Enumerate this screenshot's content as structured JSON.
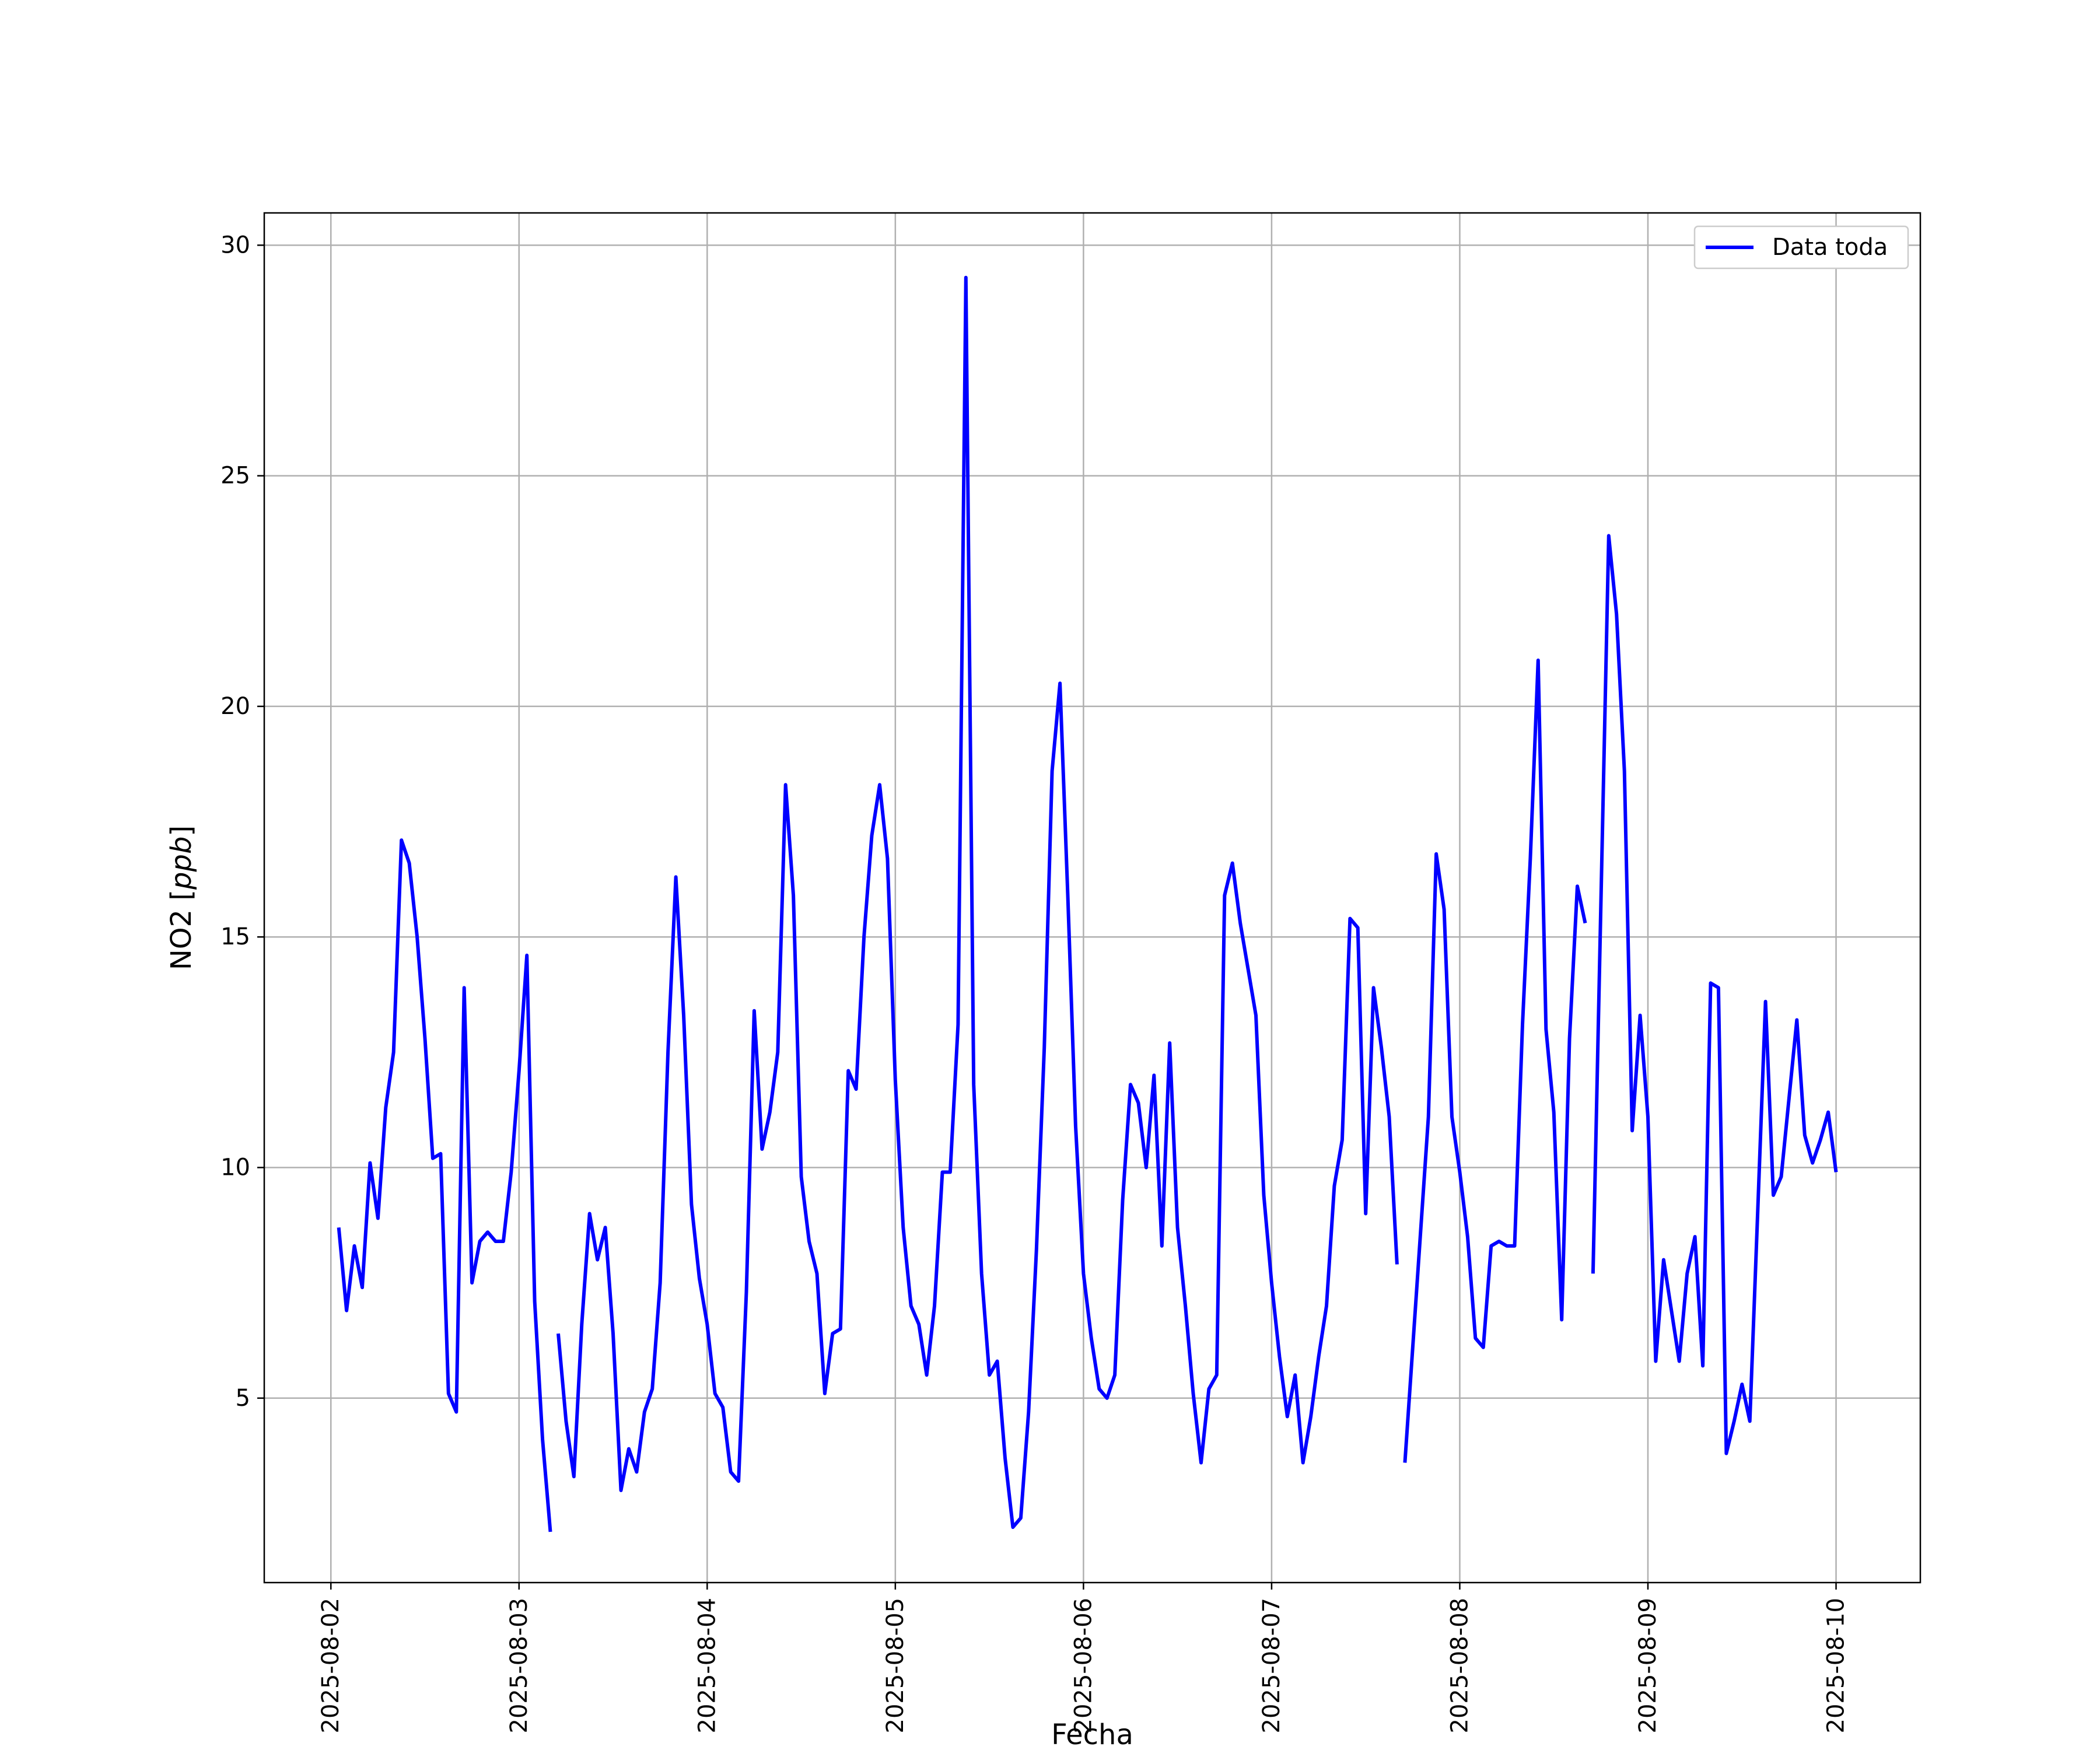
{
  "chart_data": {
    "type": "line",
    "title": "",
    "xlabel": "Fecha",
    "ylabel": "NO2 [ppb]",
    "ylim": [
      1.0,
      30.7
    ],
    "xlim": [
      "2025-08-01 15:30",
      "2025-08-10 10:45"
    ],
    "grid": true,
    "legend_position": "top-right",
    "x_ticks": [
      "2025-08-02",
      "2025-08-03",
      "2025-08-04",
      "2025-08-05",
      "2025-08-06",
      "2025-08-07",
      "2025-08-08",
      "2025-08-09",
      "2025-08-10"
    ],
    "y_ticks": [
      5,
      10,
      15,
      20,
      25,
      30
    ],
    "series": [
      {
        "name": "Data toda",
        "color": "#0000ff",
        "x": [
          "2025-08-02 01:00",
          "2025-08-02 02:00",
          "2025-08-02 03:00",
          "2025-08-02 04:00",
          "2025-08-02 05:00",
          "2025-08-02 06:00",
          "2025-08-02 07:00",
          "2025-08-02 08:00",
          "2025-08-02 09:00",
          "2025-08-02 10:00",
          "2025-08-02 11:00",
          "2025-08-02 12:00",
          "2025-08-02 13:00",
          "2025-08-02 14:00",
          "2025-08-02 15:00",
          "2025-08-02 16:00",
          "2025-08-02 17:00",
          "2025-08-02 18:00",
          "2025-08-02 19:00",
          "2025-08-02 20:00",
          "2025-08-02 21:00",
          "2025-08-02 22:00",
          "2025-08-02 23:00",
          "2025-08-03 00:00",
          "2025-08-03 01:00",
          "2025-08-03 02:00",
          "2025-08-03 03:00",
          "2025-08-03 04:00",
          "2025-08-03 05:00",
          "2025-08-03 06:00",
          "2025-08-03 07:00",
          "2025-08-03 08:00",
          "2025-08-03 09:00",
          "2025-08-03 10:00",
          "2025-08-03 11:00",
          "2025-08-03 12:00",
          "2025-08-03 13:00",
          "2025-08-03 14:00",
          "2025-08-03 15:00",
          "2025-08-03 16:00",
          "2025-08-03 17:00",
          "2025-08-03 18:00",
          "2025-08-03 19:00",
          "2025-08-03 20:00",
          "2025-08-03 21:00",
          "2025-08-03 22:00",
          "2025-08-03 23:00",
          "2025-08-04 00:00",
          "2025-08-04 01:00",
          "2025-08-04 02:00",
          "2025-08-04 03:00",
          "2025-08-04 04:00",
          "2025-08-04 05:00",
          "2025-08-04 06:00",
          "2025-08-04 07:00",
          "2025-08-04 08:00",
          "2025-08-04 09:00",
          "2025-08-04 10:00",
          "2025-08-04 11:00",
          "2025-08-04 12:00",
          "2025-08-04 13:00",
          "2025-08-04 14:00",
          "2025-08-04 15:00",
          "2025-08-04 16:00",
          "2025-08-04 17:00",
          "2025-08-04 18:00",
          "2025-08-04 19:00",
          "2025-08-04 20:00",
          "2025-08-04 21:00",
          "2025-08-04 22:00",
          "2025-08-04 23:00",
          "2025-08-05 00:00",
          "2025-08-05 01:00",
          "2025-08-05 02:00",
          "2025-08-05 03:00",
          "2025-08-05 04:00",
          "2025-08-05 05:00",
          "2025-08-05 06:00",
          "2025-08-05 07:00",
          "2025-08-05 08:00",
          "2025-08-05 09:00",
          "2025-08-05 10:00",
          "2025-08-05 11:00",
          "2025-08-05 12:00",
          "2025-08-05 13:00",
          "2025-08-05 14:00",
          "2025-08-05 15:00",
          "2025-08-05 16:00",
          "2025-08-05 17:00",
          "2025-08-05 18:00",
          "2025-08-05 19:00",
          "2025-08-05 20:00",
          "2025-08-05 21:00",
          "2025-08-05 22:00",
          "2025-08-05 23:00",
          "2025-08-06 00:00",
          "2025-08-06 01:00",
          "2025-08-06 02:00",
          "2025-08-06 03:00",
          "2025-08-06 04:00",
          "2025-08-06 05:00",
          "2025-08-06 06:00",
          "2025-08-06 07:00",
          "2025-08-06 08:00",
          "2025-08-06 09:00",
          "2025-08-06 10:00",
          "2025-08-06 11:00",
          "2025-08-06 12:00",
          "2025-08-06 13:00",
          "2025-08-06 14:00",
          "2025-08-06 15:00",
          "2025-08-06 16:00",
          "2025-08-06 17:00",
          "2025-08-06 18:00",
          "2025-08-06 19:00",
          "2025-08-06 20:00",
          "2025-08-06 21:00",
          "2025-08-06 22:00",
          "2025-08-06 23:00",
          "2025-08-07 00:00",
          "2025-08-07 01:00",
          "2025-08-07 02:00",
          "2025-08-07 03:00",
          "2025-08-07 04:00",
          "2025-08-07 05:00",
          "2025-08-07 06:00",
          "2025-08-07 07:00",
          "2025-08-07 08:00",
          "2025-08-07 09:00",
          "2025-08-07 10:00",
          "2025-08-07 11:00",
          "2025-08-07 12:00",
          "2025-08-07 13:00",
          "2025-08-07 14:00",
          "2025-08-07 15:00",
          "2025-08-07 16:00",
          "2025-08-07 17:00",
          "2025-08-07 20:00",
          "2025-08-07 21:00",
          "2025-08-07 22:00",
          "2025-08-07 23:00",
          "2025-08-08 00:00",
          "2025-08-08 01:00",
          "2025-08-08 02:00",
          "2025-08-08 03:00",
          "2025-08-08 04:00",
          "2025-08-08 05:00",
          "2025-08-08 06:00",
          "2025-08-08 07:00",
          "2025-08-08 08:00",
          "2025-08-08 09:00",
          "2025-08-08 10:00",
          "2025-08-08 11:00",
          "2025-08-08 12:00",
          "2025-08-08 13:00",
          "2025-08-08 14:00",
          "2025-08-08 15:00",
          "2025-08-08 16:00",
          "2025-08-08 17:00",
          "2025-08-08 19:00",
          "2025-08-08 20:00",
          "2025-08-08 21:00",
          "2025-08-08 22:00",
          "2025-08-08 23:00",
          "2025-08-09 00:00",
          "2025-08-09 01:00",
          "2025-08-09 02:00",
          "2025-08-09 03:00",
          "2025-08-09 04:00",
          "2025-08-09 05:00",
          "2025-08-09 06:00",
          "2025-08-09 07:00",
          "2025-08-09 08:00",
          "2025-08-09 09:00",
          "2025-08-09 10:00",
          "2025-08-09 11:00",
          "2025-08-09 12:00",
          "2025-08-09 13:00",
          "2025-08-09 14:00",
          "2025-08-09 15:00",
          "2025-08-09 16:00",
          "2025-08-09 17:00",
          "2025-08-09 18:00",
          "2025-08-09 19:00",
          "2025-08-09 20:00",
          "2025-08-09 21:00",
          "2025-08-09 22:00",
          "2025-08-09 23:00",
          "2025-08-10 00:00"
        ],
        "values": [
          8.7,
          6.9,
          8.3,
          7.4,
          10.1,
          8.9,
          11.3,
          12.5,
          17.1,
          16.6,
          15.0,
          12.8,
          10.2,
          10.3,
          5.1,
          4.7,
          13.9,
          7.5,
          8.4,
          8.6,
          8.4,
          8.4,
          9.9,
          12.1,
          14.6,
          7.1,
          4.1,
          2.1,
          6.4,
          4.5,
          3.3,
          6.6,
          9.0,
          8.0,
          8.7,
          6.4,
          3.0,
          3.9,
          3.4,
          4.7,
          5.2,
          7.5,
          12.5,
          16.3,
          13.3,
          9.2,
          7.6,
          6.6,
          5.1,
          4.8,
          3.4,
          3.2,
          7.3,
          13.4,
          10.4,
          11.2,
          12.5,
          18.3,
          15.9,
          9.8,
          8.4,
          7.7,
          5.1,
          6.4,
          6.5,
          12.1,
          11.7,
          15.0,
          17.2,
          18.3,
          16.7,
          11.9,
          8.7,
          7.0,
          6.6,
          5.5,
          7.0,
          9.9,
          9.9,
          13.1,
          29.3,
          11.8,
          7.7,
          5.5,
          5.8,
          3.7,
          2.2,
          2.4,
          4.7,
          8.2,
          12.6,
          18.6,
          20.5,
          15.9,
          10.9,
          7.7,
          6.3,
          5.2,
          5.0,
          5.5,
          9.3,
          11.8,
          11.4,
          10.0,
          12.0,
          8.3,
          12.7,
          8.7,
          7.0,
          5.1,
          3.6,
          5.2,
          5.5,
          15.9,
          16.6,
          15.3,
          14.3,
          13.3,
          9.4,
          7.5,
          5.9,
          4.6,
          5.5,
          3.6,
          4.6,
          5.9,
          7.0,
          9.6,
          10.6,
          15.4,
          15.2,
          9.0,
          13.9,
          12.6,
          11.1,
          7.9,
          3.6,
          11.1,
          16.8,
          15.6,
          11.1,
          9.9,
          8.5,
          6.3,
          6.1,
          8.3,
          8.4,
          8.3,
          8.3,
          13.1,
          16.7,
          21.0,
          13.0,
          11.2,
          6.7,
          12.8,
          16.1,
          15.3,
          7.7,
          23.7,
          22.0,
          18.6,
          10.8,
          13.3,
          11.1,
          5.8,
          8.0,
          6.9,
          5.8,
          7.7,
          8.5,
          5.7,
          14.0,
          13.9,
          3.8,
          4.5,
          5.3,
          4.5,
          9.0,
          13.6,
          9.4,
          9.8,
          11.5,
          13.2,
          10.7,
          10.1,
          10.6,
          11.2,
          9.9
        ],
        "gaps_after_index": [
          27,
          135,
          157
        ]
      }
    ]
  }
}
